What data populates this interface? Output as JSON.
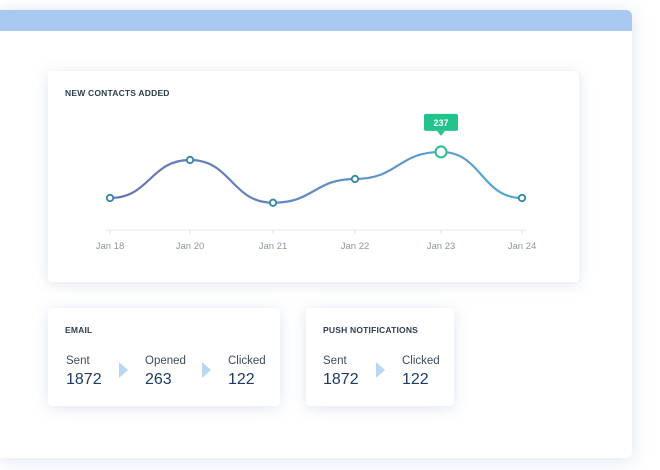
{
  "colors": {
    "topbar": "#a9c8ef",
    "line_start": "#6a6fb4",
    "line_end": "#56a9d6",
    "point_stroke": "#2f86a6",
    "highlight": "#22c28b",
    "arrow": "#b9d6f2"
  },
  "contacts_card": {
    "title": "NEW CONTACTS ADDED"
  },
  "chart_data": {
    "type": "line",
    "title": "NEW CONTACTS ADDED",
    "categories": [
      "Jan 18",
      "Jan 20",
      "Jan 21",
      "Jan 22",
      "Jan 23",
      "Jan 24"
    ],
    "series": [
      {
        "values": [
          140,
          220,
          130,
          180,
          237,
          140
        ]
      }
    ],
    "highlight": {
      "category": "Jan 23",
      "label": "237"
    },
    "ylim": [
      100,
      260
    ],
    "grid": false,
    "legend": "none"
  },
  "email_card": {
    "title": "EMAIL",
    "stats": [
      {
        "label": "Sent",
        "value": "1872"
      },
      {
        "label": "Opened",
        "value": "263"
      },
      {
        "label": "Clicked",
        "value": "122"
      }
    ]
  },
  "push_card": {
    "title": "PUSH NOTIFICATIONS",
    "stats": [
      {
        "label": "Sent",
        "value": "1872"
      },
      {
        "label": "Clicked",
        "value": "122"
      }
    ]
  }
}
